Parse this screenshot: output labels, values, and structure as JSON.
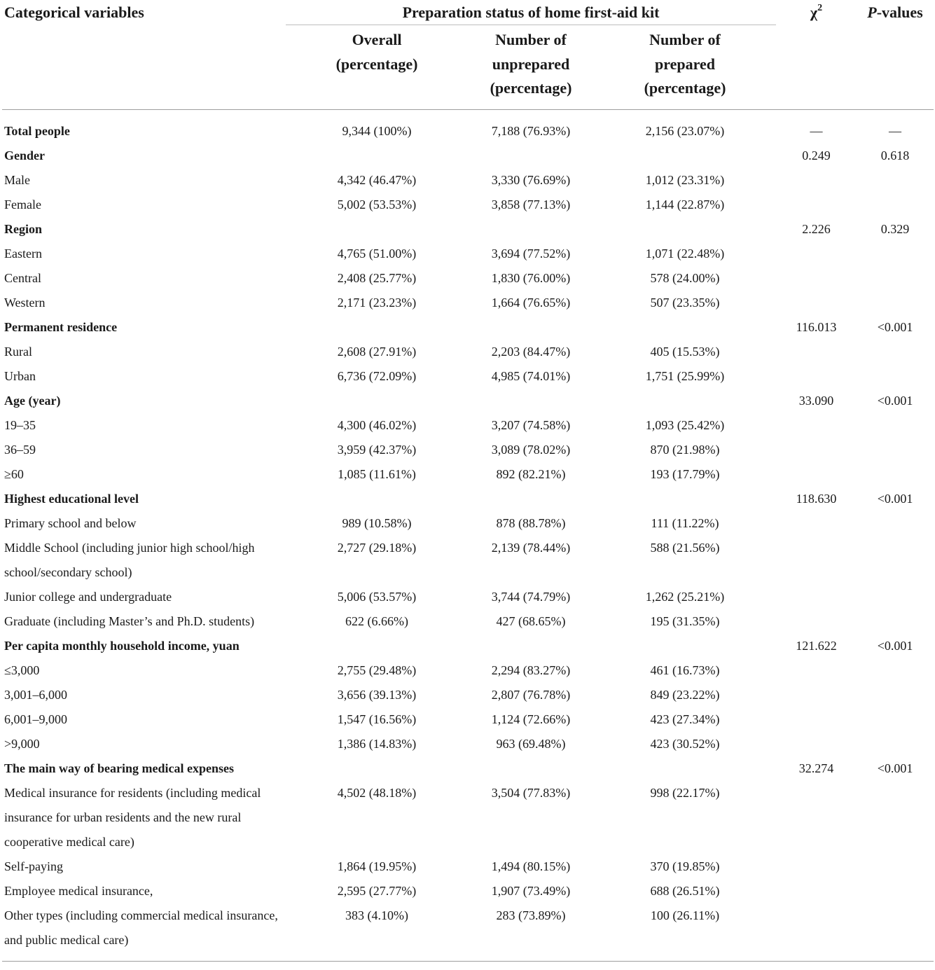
{
  "header": {
    "col1": "Categorical variables",
    "group": "Preparation status of home first-aid kit",
    "chi_symbol": "χ",
    "chi_sup": "2",
    "p_italic": "P",
    "p_rest": "-values",
    "sub": [
      [
        "Overall",
        "(percentage)"
      ],
      [
        "Number of",
        "unprepared",
        "(percentage)"
      ],
      [
        "Number of",
        "prepared",
        "(percentage)"
      ]
    ]
  },
  "rows": [
    {
      "label": "Total people",
      "bold": true,
      "overall": "9,344 (100%)",
      "unprepared": "7,188 (76.93%)",
      "prepared": "2,156 (23.07%)",
      "chi": "—",
      "p": "—"
    },
    {
      "label": "Gender",
      "bold": true,
      "overall": "",
      "unprepared": "",
      "prepared": "",
      "chi": "0.249",
      "p": "0.618"
    },
    {
      "label": "Male",
      "overall": "4,342 (46.47%)",
      "unprepared": "3,330 (76.69%)",
      "prepared": "1,012 (23.31%)",
      "chi": "",
      "p": ""
    },
    {
      "label": "Female",
      "overall": "5,002 (53.53%)",
      "unprepared": "3,858 (77.13%)",
      "prepared": "1,144 (22.87%)",
      "chi": "",
      "p": ""
    },
    {
      "label": "Region",
      "bold": true,
      "overall": "",
      "unprepared": "",
      "prepared": "",
      "chi": "2.226",
      "p": "0.329"
    },
    {
      "label": "Eastern",
      "overall": "4,765 (51.00%)",
      "unprepared": "3,694 (77.52%)",
      "prepared": "1,071 (22.48%)",
      "chi": "",
      "p": ""
    },
    {
      "label": "Central",
      "overall": "2,408 (25.77%)",
      "unprepared": "1,830 (76.00%)",
      "prepared": "578 (24.00%)",
      "chi": "",
      "p": ""
    },
    {
      "label": "Western",
      "overall": "2,171 (23.23%)",
      "unprepared": "1,664 (76.65%)",
      "prepared": "507 (23.35%)",
      "chi": "",
      "p": ""
    },
    {
      "label": "Permanent residence",
      "bold": true,
      "overall": "",
      "unprepared": "",
      "prepared": "",
      "chi": "116.013",
      "p": "<0.001"
    },
    {
      "label": "Rural",
      "overall": "2,608 (27.91%)",
      "unprepared": "2,203 (84.47%)",
      "prepared": "405 (15.53%)",
      "chi": "",
      "p": ""
    },
    {
      "label": "Urban",
      "overall": "6,736 (72.09%)",
      "unprepared": "4,985 (74.01%)",
      "prepared": "1,751 (25.99%)",
      "chi": "",
      "p": ""
    },
    {
      "label": "Age (year)",
      "bold": true,
      "overall": "",
      "unprepared": "",
      "prepared": "",
      "chi": "33.090",
      "p": "<0.001"
    },
    {
      "label": "19–35",
      "overall": "4,300 (46.02%)",
      "unprepared": "3,207 (74.58%)",
      "prepared": "1,093 (25.42%)",
      "chi": "",
      "p": ""
    },
    {
      "label": "36–59",
      "overall": "3,959 (42.37%)",
      "unprepared": "3,089 (78.02%)",
      "prepared": "870 (21.98%)",
      "chi": "",
      "p": ""
    },
    {
      "label": "≥60",
      "overall": "1,085 (11.61%)",
      "unprepared": "892 (82.21%)",
      "prepared": "193 (17.79%)",
      "chi": "",
      "p": ""
    },
    {
      "label": "Highest educational level",
      "bold": true,
      "overall": "",
      "unprepared": "",
      "prepared": "",
      "chi": "118.630",
      "p": "<0.001"
    },
    {
      "label": "Primary school and below",
      "overall": "989 (10.58%)",
      "unprepared": "878 (88.78%)",
      "prepared": "111 (11.22%)",
      "chi": "",
      "p": ""
    },
    {
      "label": "Middle School (including junior high school/high school/secondary school)",
      "overall": "2,727 (29.18%)",
      "unprepared": "2,139 (78.44%)",
      "prepared": "588 (21.56%)",
      "chi": "",
      "p": ""
    },
    {
      "label": "Junior college and undergraduate",
      "overall": "5,006 (53.57%)",
      "unprepared": "3,744 (74.79%)",
      "prepared": "1,262 (25.21%)",
      "chi": "",
      "p": ""
    },
    {
      "label": "Graduate (including Master’s and Ph.D. students)",
      "overall": "622 (6.66%)",
      "unprepared": "427 (68.65%)",
      "prepared": "195 (31.35%)",
      "chi": "",
      "p": ""
    },
    {
      "label": "Per capita monthly household income, yuan",
      "bold": true,
      "overall": "",
      "unprepared": "",
      "prepared": "",
      "chi": "121.622",
      "p": "<0.001"
    },
    {
      "label": "≤3,000",
      "overall": "2,755 (29.48%)",
      "unprepared": "2,294 (83.27%)",
      "prepared": "461 (16.73%)",
      "chi": "",
      "p": ""
    },
    {
      "label": "3,001–6,000",
      "overall": "3,656 (39.13%)",
      "unprepared": "2,807 (76.78%)",
      "prepared": "849 (23.22%)",
      "chi": "",
      "p": ""
    },
    {
      "label": "6,001–9,000",
      "overall": "1,547 (16.56%)",
      "unprepared": "1,124 (72.66%)",
      "prepared": "423 (27.34%)",
      "chi": "",
      "p": ""
    },
    {
      "label": ">9,000",
      "overall": "1,386 (14.83%)",
      "unprepared": "963 (69.48%)",
      "prepared": "423 (30.52%)",
      "chi": "",
      "p": ""
    },
    {
      "label": "The main way of bearing medical expenses",
      "bold": true,
      "overall": "",
      "unprepared": "",
      "prepared": "",
      "chi": "32.274",
      "p": "<0.001"
    },
    {
      "label": "Medical insurance for residents (including medical insurance for urban residents and the new rural cooperative medical care)",
      "overall": "4,502 (48.18%)",
      "unprepared": "3,504 (77.83%)",
      "prepared": "998 (22.17%)",
      "chi": "",
      "p": ""
    },
    {
      "label": "Self-paying",
      "overall": "1,864 (19.95%)",
      "unprepared": "1,494 (80.15%)",
      "prepared": "370 (19.85%)",
      "chi": "",
      "p": ""
    },
    {
      "label": "Employee medical insurance,",
      "overall": "2,595 (27.77%)",
      "unprepared": "1,907 (73.49%)",
      "prepared": "688 (26.51%)",
      "chi": "",
      "p": ""
    },
    {
      "label": "Other types (including commercial medical insurance, and public medical care)",
      "overall": "383 (4.10%)",
      "unprepared": "283 (73.89%)",
      "prepared": "100 (26.11%)",
      "chi": "",
      "p": ""
    }
  ]
}
